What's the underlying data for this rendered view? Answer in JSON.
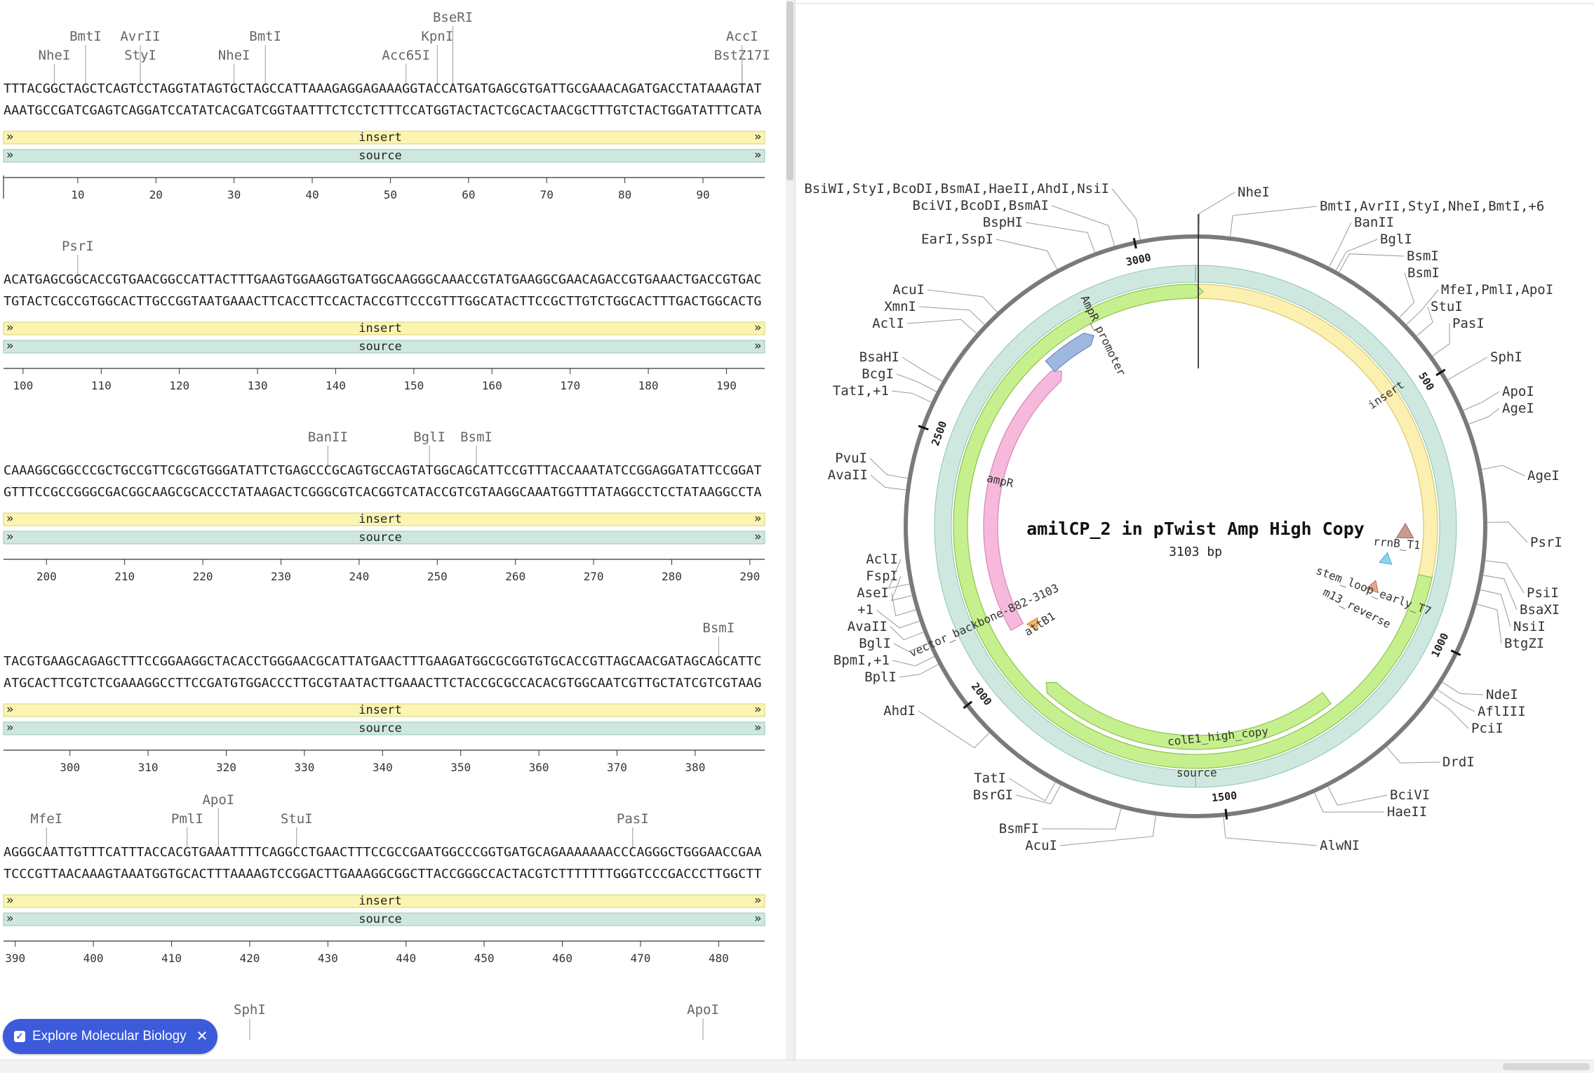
{
  "linear_view": {
    "rows": [
      {
        "top": "TTTACGGCTAGCTCAGTCCTAGGTATAGTGCTAGCCATTAAAGAGGAGAAAGGTACCATGATGAGCGTGATTGCGAAACAGATGACCTATAAAGTAT",
        "bottom": "AAATGCCGATCGAGTCAGGATCCATATCACGATCGGTAATTTCTCCTCTTTCCATGGTACTACTCGCACTAACGCTTTGTCTACTGGATATTTCATA",
        "start": 1,
        "ticks": [
          "10",
          "20",
          "30",
          "40",
          "50",
          "60",
          "70",
          "80",
          "90"
        ],
        "enzymes": [
          {
            "name": "NheI",
            "bp": 7,
            "level": 0
          },
          {
            "name": "BmtI",
            "bp": 11,
            "level": 1
          },
          {
            "name": "StyI",
            "bp": 18,
            "level": 0
          },
          {
            "name": "AvrII",
            "bp": 18,
            "level": 1
          },
          {
            "name": "NheI",
            "bp": 30,
            "level": 0
          },
          {
            "name": "BmtI",
            "bp": 34,
            "level": 1
          },
          {
            "name": "Acc65I",
            "bp": 52,
            "level": 0
          },
          {
            "name": "KpnI",
            "bp": 56,
            "level": 1
          },
          {
            "name": "BseRI",
            "bp": 58,
            "level": 2
          },
          {
            "name": "BstZ17I",
            "bp": 95,
            "level": 0
          },
          {
            "name": "AccI",
            "bp": 95,
            "level": 1
          }
        ]
      },
      {
        "top": "ACATGAGCGGCACCGTGAACGGCCATTACTTTGAAGTGGAAGGTGATGGCAAGGGCAAACCGTATGAAGGCGAACAGACCGTGAAACTGACCGTGAC",
        "bottom": "TGTACTCGCCGTGGCACTTGCCGGTAATGAAACTTCACCTTCCACTACCGTTCCCGTTTGGCATACTTCCGCTTGTCTGGCACTTTGACTGGCACTG",
        "start": 98,
        "ticks": [
          "100",
          "110",
          "120",
          "130",
          "140",
          "150",
          "160",
          "170",
          "180",
          "190"
        ],
        "enzymes": [
          {
            "name": "PsrI",
            "bp": 107,
            "level": 0
          }
        ]
      },
      {
        "top": "CAAAGGCGGCCCGCTGCCGTTCGCGTGGGATATTCTGAGCCCGCAGTGCCAGTATGGCAGCATTCCGTTTACCAAATATCCGGAGGATATTCCGGAT",
        "bottom": "GTTTCCGCCGGGCGACGGCAAGCGCACCCTATAAGACTCGGGCGTCACGGTCATACCGTCGTAAGGCAAATGGTTTATAGGCCTCCTATAAGGCCTA",
        "start": 195,
        "ticks": [
          "200",
          "210",
          "220",
          "230",
          "240",
          "250",
          "260",
          "270",
          "280",
          "290"
        ],
        "enzymes": [
          {
            "name": "BanII",
            "bp": 236,
            "level": 0
          },
          {
            "name": "BglI",
            "bp": 249,
            "level": 0
          },
          {
            "name": "BsmI",
            "bp": 255,
            "level": 0
          }
        ]
      },
      {
        "top": "TACGTGAAGCAGAGCTTTCCGGAAGGCTACACCTGGGAACGCATTATGAACTTTGAAGATGGCGCGGTGTGCACCGTTAGCAACGATAGCAGCATTC",
        "bottom": "ATGCACTTCGTCTCGAAAGGCCTTCCGATGTGGACCCTTGCGTAATACTTGAAACTTCTACCGCGCCACACGTGGCAATCGTTGCTATCGTCGTAAG",
        "start": 292,
        "ticks": [
          "300",
          "310",
          "320",
          "330",
          "340",
          "350",
          "360",
          "370",
          "380"
        ],
        "enzymes": [
          {
            "name": "BsmI",
            "bp": 383,
            "level": 0
          }
        ]
      },
      {
        "top": "AGGGCAATTGTTTCATTTACCACGTGAAATTTTCAGGCCTGAACTTTCCGCCGAATGGCCCGGTGATGCAGAAAAAAACCCAGGGCTGGGAACCGAA",
        "bottom": "TCCCGTTAACAAAGTAAATGGTGCACTTTAAAAGTCCGGACTTGAAAGGCGGCTTACCGGGCCACTACGTCTTTTTTTGGGTCCCGACCCTTGGCTT",
        "start": 389,
        "ticks": [
          "390",
          "400",
          "410",
          "420",
          "430",
          "440",
          "450",
          "460",
          "470",
          "480"
        ],
        "enzymes": [
          {
            "name": "MfeI",
            "bp": 394,
            "level": 0
          },
          {
            "name": "PmlI",
            "bp": 412,
            "level": 0
          },
          {
            "name": "ApoI",
            "bp": 416,
            "level": 1
          },
          {
            "name": "StuI",
            "bp": 426,
            "level": 0
          },
          {
            "name": "PasI",
            "bp": 469,
            "level": 0
          }
        ]
      },
      {
        "top": "",
        "bottom": "",
        "start": 486,
        "ticks": [],
        "enzymes": [
          {
            "name": "SphI",
            "bp": 517,
            "level": 0
          },
          {
            "name": "ApoI",
            "bp": 575,
            "level": 0
          }
        ]
      }
    ],
    "features": [
      {
        "label": "insert",
        "color": "#fbf5b1",
        "stroke": "#d9d27a"
      },
      {
        "label": "source",
        "color": "#cfe8df",
        "stroke": "#98c7b7"
      }
    ]
  },
  "circular_map": {
    "title": "amilCP_2 in pTwist Amp High Copy",
    "length": 3103,
    "subtitle": "3103 bp",
    "tick_labels": [
      "500",
      "1000",
      "1500",
      "2000",
      "2500",
      "3000"
    ],
    "features": [
      {
        "label": "source",
        "start": 1,
        "end": 3103,
        "color": "#cfe8df",
        "stroke": "#8fc4b2"
      },
      {
        "label": "insert",
        "start": 1,
        "end": 881,
        "color": "#fbf0b0",
        "stroke": "#d9c86a"
      },
      {
        "label": "vector_backbone-882-3103",
        "start": 882,
        "end": 3103,
        "color": "#c6f08d",
        "stroke": "#8dc24f"
      },
      {
        "label": "colE1_high_copy",
        "start": 1230,
        "end": 1912,
        "color": "#c6f08d",
        "stroke": "#8dc24f"
      },
      {
        "label": "ampR",
        "start": 2075,
        "end": 2735,
        "color": "#f6b9dc",
        "stroke": "#d985b5"
      },
      {
        "label": "AmpR_promoter",
        "start": 2740,
        "end": 2845,
        "color": "#9eb8df",
        "stroke": "#6d8cc0"
      },
      {
        "label": "rrnB_T1",
        "start": 780,
        "end": 800,
        "color": "#c89b90",
        "stroke": "#8e6a60"
      },
      {
        "label": "stem_loop_early_T7",
        "start": 855,
        "end": 866,
        "color": "#8fd3ee",
        "stroke": "#4aa7cf"
      },
      {
        "label": "m13_reverse",
        "start": 930,
        "end": 945,
        "color": "#e7a58e",
        "stroke": "#b96e54"
      },
      {
        "label": "attB1",
        "start": 2050,
        "end": 2065,
        "color": "#f5b36b",
        "stroke": "#c98434"
      }
    ],
    "enzyme_labels": [
      {
        "text": "NheI",
        "bp": 7
      },
      {
        "text": "BmtI,AvrII,StyI,NheI,BmtI,+6",
        "bp": 60
      },
      {
        "text": "BanII",
        "bp": 236
      },
      {
        "text": "BglI",
        "bp": 249
      },
      {
        "text": "BsmI",
        "bp": 255
      },
      {
        "text": "BsmI",
        "bp": 383
      },
      {
        "text": "MfeI,PmlI,ApoI",
        "bp": 400
      },
      {
        "text": "StuI",
        "bp": 426
      },
      {
        "text": "PasI",
        "bp": 469
      },
      {
        "text": "SphI",
        "bp": 517
      },
      {
        "text": "ApoI",
        "bp": 575
      },
      {
        "text": "AgeI",
        "bp": 600
      },
      {
        "text": "AgeI",
        "bp": 680
      },
      {
        "text": "PsrI",
        "bp": 770
      },
      {
        "text": "PsiI",
        "bp": 835
      },
      {
        "text": "BsaXI",
        "bp": 860
      },
      {
        "text": "NsiI",
        "bp": 885
      },
      {
        "text": "BtgZI",
        "bp": 910
      },
      {
        "text": "NdeI",
        "bp": 1055
      },
      {
        "text": "AflIII",
        "bp": 1070
      },
      {
        "text": "PciI",
        "bp": 1085
      },
      {
        "text": "DrdI",
        "bp": 1200
      },
      {
        "text": "BciVI",
        "bp": 1320
      },
      {
        "text": "HaeII",
        "bp": 1345
      },
      {
        "text": "AlwNI",
        "bp": 1505
      },
      {
        "text": "AcuI",
        "bp": 1620
      },
      {
        "text": "BsmFI",
        "bp": 1680
      },
      {
        "text": "BsrGI",
        "bp": 1790
      },
      {
        "text": "TatI",
        "bp": 1800
      },
      {
        "text": "AhdI",
        "bp": 1940
      },
      {
        "text": "BplI",
        "bp": 2085
      },
      {
        "text": "BpmI,+1",
        "bp": 2100
      },
      {
        "text": "BglI",
        "bp": 2125
      },
      {
        "text": "AvaII",
        "bp": 2145
      },
      {
        "text": "+1",
        "bp": 2165
      },
      {
        "text": "AseI",
        "bp": 2185
      },
      {
        "text": "FspI",
        "bp": 2210
      },
      {
        "text": "AclI",
        "bp": 2230
      },
      {
        "text": "AvaII",
        "bp": 2390
      },
      {
        "text": "PvuI",
        "bp": 2410
      },
      {
        "text": "TatI,+1",
        "bp": 2545
      },
      {
        "text": "BcgI",
        "bp": 2565
      },
      {
        "text": "BsaHI",
        "bp": 2585
      },
      {
        "text": "AclI",
        "bp": 2685
      },
      {
        "text": "XmnI",
        "bp": 2705
      },
      {
        "text": "AcuI",
        "bp": 2735
      },
      {
        "text": "EarI,SspI",
        "bp": 2860
      },
      {
        "text": "BspHI",
        "bp": 2930
      },
      {
        "text": "BciVI,BcoDI,BsmAI",
        "bp": 2965
      },
      {
        "text": "BsiWI,StyI,BcoDI,BsmAI,HaeII,AhdI,NsiI",
        "bp": 3010
      }
    ]
  },
  "explore_chip": {
    "label": "Explore Molecular Biology"
  },
  "colors": {
    "chip": "#3b5bdb",
    "insert": "#fbf5b1",
    "source": "#cfe8df",
    "backbone": "#c6f08d",
    "ampR": "#f6b9dc"
  }
}
